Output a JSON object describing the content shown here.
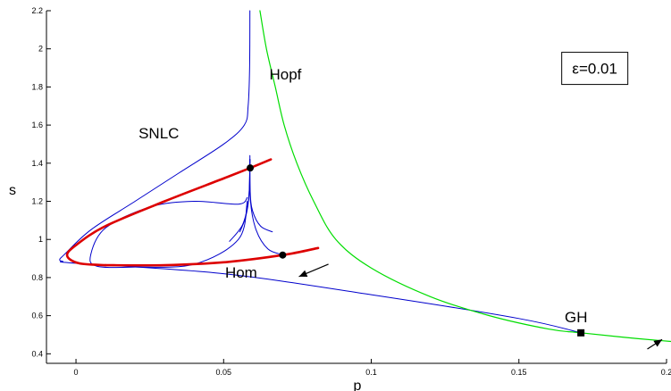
{
  "chart_data": {
    "type": "line",
    "title": "",
    "xlabel": "p",
    "ylabel": "s",
    "xlim": [
      -0.01,
      0.2
    ],
    "ylim": [
      0.35,
      2.2
    ],
    "xticks": [
      {
        "v": 0,
        "label": "0"
      },
      {
        "v": 0.05,
        "label": "0.05"
      },
      {
        "v": 0.1,
        "label": "0.1"
      },
      {
        "v": 0.15,
        "label": "0.15"
      },
      {
        "v": 0.2,
        "label": "0.2"
      }
    ],
    "yticks": [
      {
        "v": 0.4,
        "label": "0.4"
      },
      {
        "v": 0.6,
        "label": "0.6"
      },
      {
        "v": 0.8,
        "label": "0.8"
      },
      {
        "v": 1,
        "label": "1"
      },
      {
        "v": 1.2,
        "label": "1.2"
      },
      {
        "v": 1.4,
        "label": "1.4"
      },
      {
        "v": 1.6,
        "label": "1.6"
      },
      {
        "v": 1.8,
        "label": "1.8"
      },
      {
        "v": 2,
        "label": "2"
      },
      {
        "v": 2.2,
        "label": "2.2"
      }
    ],
    "grid": false,
    "colors": {
      "hopf": "#00dd00",
      "snlc": "#0000cc",
      "hom": "#dd0000",
      "text": "#000000"
    },
    "series": [
      {
        "key": "hopf",
        "points": [
          [
            0.0623,
            2.2
          ],
          [
            0.0645,
            2.0
          ],
          [
            0.0675,
            1.8
          ],
          [
            0.0705,
            1.6
          ],
          [
            0.0748,
            1.4
          ],
          [
            0.0805,
            1.2
          ],
          [
            0.088,
            1.0
          ],
          [
            0.1,
            0.85
          ],
          [
            0.12,
            0.7
          ],
          [
            0.14,
            0.6
          ],
          [
            0.16,
            0.53
          ],
          [
            0.171,
            0.51
          ],
          [
            0.19,
            0.48
          ],
          [
            0.21,
            0.454
          ]
        ]
      },
      {
        "key": "snlc",
        "points": [
          [
            0.0589,
            2.2
          ],
          [
            0.0588,
            1.9
          ],
          [
            0.0583,
            1.7
          ],
          [
            0.057,
            1.6
          ],
          [
            0.05,
            1.5
          ],
          [
            0.035,
            1.35
          ],
          [
            0.02,
            1.2
          ],
          [
            0.005,
            1.05
          ],
          [
            -0.004,
            0.92
          ],
          [
            -0.0055,
            0.895
          ],
          [
            -0.0045,
            0.885
          ],
          [
            0.0,
            0.875
          ],
          [
            0.05,
            0.82
          ],
          [
            0.1,
            0.71
          ],
          [
            0.15,
            0.585
          ],
          [
            0.171,
            0.51
          ]
        ]
      },
      {
        "key": "hom-upper",
        "points": [
          [
            0.066,
            1.42
          ],
          [
            0.059,
            1.375
          ],
          [
            0.05,
            1.32
          ],
          [
            0.03,
            1.2
          ],
          [
            0.01,
            1.07
          ],
          [
            0.0,
            0.97
          ],
          [
            -0.003,
            0.915
          ],
          [
            0.001,
            0.875
          ],
          [
            0.01,
            0.865
          ]
        ]
      },
      {
        "key": "hom-lower",
        "points": [
          [
            0.01,
            0.865
          ],
          [
            0.03,
            0.865
          ],
          [
            0.05,
            0.88
          ],
          [
            0.07,
            0.918
          ],
          [
            0.082,
            0.955
          ]
        ]
      },
      {
        "key": "loop",
        "points": [
          [
            0.058,
            1.22
          ],
          [
            0.055,
            1.185
          ],
          [
            0.04,
            1.2
          ],
          [
            0.025,
            1.17
          ],
          [
            0.01,
            1.06
          ],
          [
            0.005,
            0.92
          ],
          [
            0.007,
            0.86
          ],
          [
            0.02,
            0.855
          ],
          [
            0.04,
            0.87
          ],
          [
            0.055,
            1.0
          ],
          [
            0.058,
            1.2
          ]
        ]
      },
      {
        "key": "cusp-1",
        "points": [
          [
            0.0589,
            1.44
          ],
          [
            0.0591,
            1.2
          ],
          [
            0.061,
            1.05
          ],
          [
            0.065,
            0.95
          ],
          [
            0.07,
            0.92
          ]
        ]
      },
      {
        "key": "cusp-2",
        "points": [
          [
            0.0589,
            1.42
          ],
          [
            0.059,
            1.25
          ],
          [
            0.0598,
            1.15
          ],
          [
            0.0625,
            1.07
          ],
          [
            0.0665,
            1.04
          ]
        ]
      },
      {
        "key": "cusp-3",
        "points": [
          [
            0.0589,
            1.42
          ],
          [
            0.0585,
            1.22
          ],
          [
            0.0565,
            1.08
          ],
          [
            0.052,
            0.99
          ]
        ]
      },
      {
        "key": "cusp-4",
        "points": [
          [
            0.0589,
            1.42
          ],
          [
            0.0586,
            1.23
          ],
          [
            0.0575,
            1.12
          ],
          [
            0.0555,
            1.04
          ]
        ]
      }
    ],
    "points": [
      {
        "key": "bt",
        "x": 0.059,
        "y": 1.375,
        "marker": "circle"
      },
      {
        "key": "hom-point",
        "x": 0.07,
        "y": 0.918,
        "marker": "circle"
      },
      {
        "key": "gh",
        "x": 0.171,
        "y": 0.51,
        "marker": "square"
      }
    ],
    "arrows": [
      {
        "key": "arrow-hom",
        "from": [
          0.0855,
          0.87
        ],
        "to": [
          0.0755,
          0.805
        ]
      },
      {
        "key": "arrow-gh",
        "from": [
          0.1935,
          0.425
        ],
        "to": [
          0.1985,
          0.475
        ]
      }
    ],
    "annotations": [
      {
        "key": "label-hopf",
        "text": "Hopf",
        "x": 0.0655,
        "y": 1.84
      },
      {
        "key": "label-snlc",
        "text": "SNLC",
        "x": 0.0212,
        "y": 1.53
      },
      {
        "key": "label-hom",
        "text": "Hom",
        "x": 0.0505,
        "y": 0.8
      },
      {
        "key": "label-gh",
        "text": "GH",
        "x": 0.1655,
        "y": 0.565
      }
    ],
    "legend_box": {
      "text": "ε=0.01",
      "x": 0.1645,
      "y": 1.86
    }
  }
}
